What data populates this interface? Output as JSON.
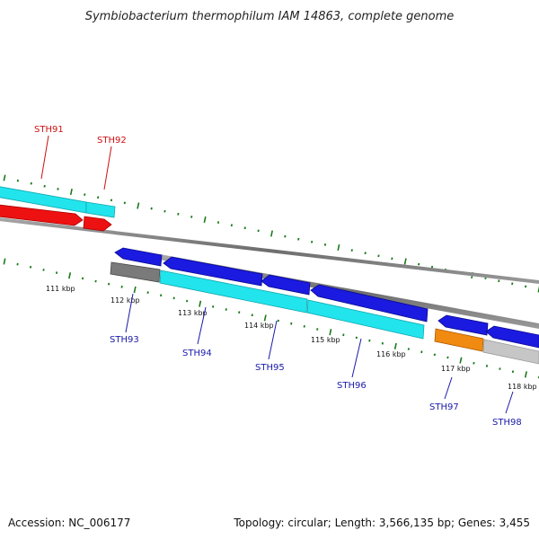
{
  "title": "Symbiobacterium thermophilum IAM 14863, complete genome",
  "footer": {
    "accession": "Accession: NC_006177",
    "topology": "Topology: circular; Length: 3,566,135 bp; Genes: 3,455"
  },
  "colors": {
    "cyan": "#22e4ec",
    "red": "#ee1111",
    "blue": "#1a1ae0",
    "gray": "#7a7a7a",
    "light_gray": "#c6c6c6",
    "orange": "#f08a10",
    "tick_green": "#1a7a1a",
    "label_red": "#cc1111",
    "label_blue": "#1a1aaa"
  },
  "kbp_labels": [
    "111 kbp",
    "112 kbp",
    "113 kbp",
    "114 kbp",
    "115 kbp",
    "116 kbp",
    "117 kbp",
    "118 kbp"
  ],
  "gene_labels": [
    {
      "text": "STH91",
      "group": "top"
    },
    {
      "text": "STH92",
      "group": "top"
    },
    {
      "text": "STH93",
      "group": "bottom"
    },
    {
      "text": "STH94",
      "group": "bottom"
    },
    {
      "text": "STH95",
      "group": "bottom"
    },
    {
      "text": "STH96",
      "group": "bottom"
    },
    {
      "text": "STH97",
      "group": "bottom"
    },
    {
      "text": "STH98",
      "group": "bottom"
    }
  ]
}
